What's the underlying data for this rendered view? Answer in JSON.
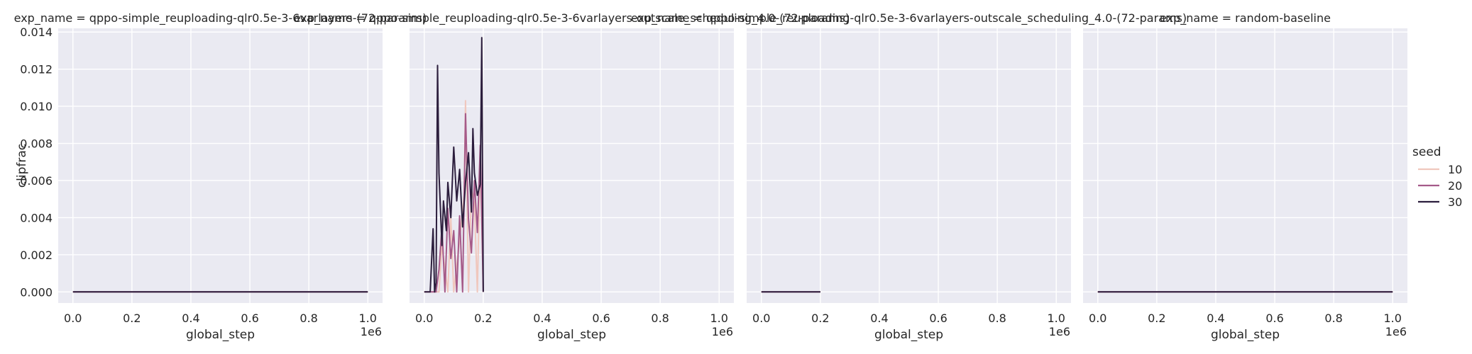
{
  "chart_data": {
    "type": "line",
    "x_field": "global_step",
    "y_field": "clipfrac",
    "xlabel": "global_step",
    "ylabel": "clipfrac",
    "x_offset_label": "1e6",
    "xlim": [
      -0.05,
      1.05
    ],
    "ylim": [
      -0.0006,
      0.0142
    ],
    "xticks": [
      0.0,
      0.2,
      0.4,
      0.6,
      0.8,
      1.0
    ],
    "xtick_labels": [
      "0.0",
      "0.2",
      "0.4",
      "0.6",
      "0.8",
      "1.0"
    ],
    "yticks": [
      0.0,
      0.002,
      0.004,
      0.006,
      0.008,
      0.01,
      0.012,
      0.014
    ],
    "ytick_labels": [
      "0.000",
      "0.002",
      "0.004",
      "0.006",
      "0.008",
      "0.010",
      "0.012",
      "0.014"
    ],
    "grid": true,
    "legend": {
      "title": "seed",
      "position": "right",
      "entries": [
        {
          "label": "10",
          "color": "#f0c7bd"
        },
        {
          "label": "20",
          "color": "#a55a89"
        },
        {
          "label": "30",
          "color": "#2c1e3d"
        }
      ]
    },
    "panels": [
      {
        "title": "exp_name = qppo-simple_reuploading-qlr0.5e-3-6varlayers-(72-params)",
        "series": [
          {
            "name": "10",
            "x": [
              0.0,
              1.0
            ],
            "y": [
              0.0,
              0.0
            ]
          },
          {
            "name": "20",
            "x": [
              0.0,
              1.0
            ],
            "y": [
              0.0,
              0.0
            ]
          },
          {
            "name": "30",
            "x": [
              0.0,
              1.0
            ],
            "y": [
              0.0,
              0.0
            ]
          }
        ]
      },
      {
        "title": "exp_name = qppo-simple_reuploading-qlr0.5e-3-6varlayers-outscale_scheduling_4.0-(72-params)",
        "series": [
          {
            "name": "10",
            "x": [
              0.0,
              0.05,
              0.06,
              0.08,
              0.09,
              0.1,
              0.12,
              0.135,
              0.14,
              0.15,
              0.16,
              0.17,
              0.18,
              0.19,
              0.2
            ],
            "y": [
              0.0,
              0.0,
              0.0025,
              0.0,
              0.004,
              0.0,
              0.0028,
              0.0052,
              0.0103,
              0.0,
              0.0055,
              0.0048,
              0.0,
              0.0075,
              0.0
            ]
          },
          {
            "name": "20",
            "x": [
              0.0,
              0.04,
              0.05,
              0.06,
              0.07,
              0.08,
              0.09,
              0.1,
              0.11,
              0.12,
              0.13,
              0.14,
              0.15,
              0.16,
              0.17,
              0.18,
              0.19,
              0.2
            ],
            "y": [
              0.0,
              0.0,
              0.0012,
              0.0035,
              0.0,
              0.0045,
              0.0018,
              0.0033,
              0.0,
              0.0041,
              0.0,
              0.0096,
              0.0039,
              0.0021,
              0.006,
              0.0032,
              0.0079,
              0.0
            ]
          },
          {
            "name": "30",
            "x": [
              0.0,
              0.02,
              0.03,
              0.035,
              0.04,
              0.045,
              0.05,
              0.06,
              0.065,
              0.075,
              0.08,
              0.09,
              0.1,
              0.11,
              0.12,
              0.13,
              0.14,
              0.15,
              0.16,
              0.165,
              0.17,
              0.18,
              0.19,
              0.195,
              0.2,
              0.2
            ],
            "y": [
              0.0,
              0.0,
              0.0034,
              0.0,
              0.0005,
              0.0122,
              0.0064,
              0.0025,
              0.0049,
              0.0033,
              0.0059,
              0.004,
              0.0078,
              0.0049,
              0.0066,
              0.0035,
              0.0059,
              0.0075,
              0.0043,
              0.0088,
              0.0064,
              0.0052,
              0.0058,
              0.0137,
              0.0,
              0.0
            ]
          }
        ]
      },
      {
        "title": "exp_name = qppo-simple_reuploading-qlr0.5e-3-6varlayers-outscale_scheduling_4.0-(72-params)",
        "series": [
          {
            "name": "10",
            "x": [
              0.0,
              0.2
            ],
            "y": [
              0.0,
              0.0
            ]
          },
          {
            "name": "20",
            "x": [
              0.0,
              0.2
            ],
            "y": [
              0.0,
              0.0
            ]
          },
          {
            "name": "30",
            "x": [
              0.0,
              0.2
            ],
            "y": [
              0.0,
              0.0
            ]
          }
        ]
      },
      {
        "title": "exp_name = random-baseline",
        "series": [
          {
            "name": "10",
            "x": [
              0.0,
              1.0
            ],
            "y": [
              0.0,
              0.0
            ]
          },
          {
            "name": "20",
            "x": [
              0.0,
              1.0
            ],
            "y": [
              0.0,
              0.0
            ]
          },
          {
            "name": "30",
            "x": [
              0.0,
              1.0
            ],
            "y": [
              0.0,
              0.0
            ]
          }
        ]
      }
    ]
  }
}
